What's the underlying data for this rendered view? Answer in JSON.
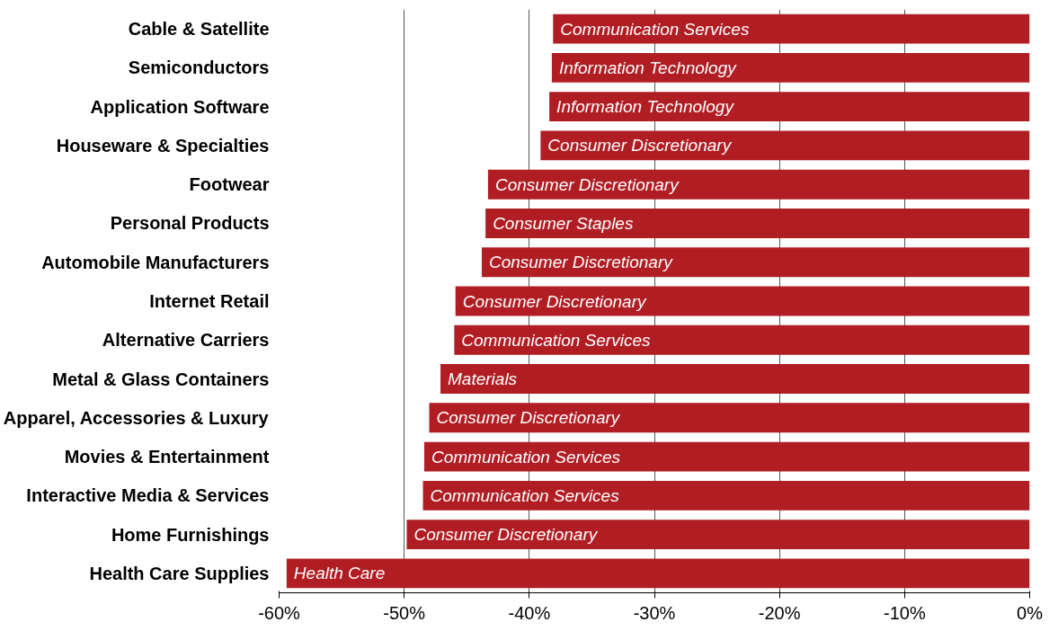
{
  "chart_data": {
    "type": "bar",
    "orientation": "horizontal",
    "categories": [
      "Cable & Satellite",
      "Semiconductors",
      "Application Software",
      "Houseware & Specialties",
      "Footwear",
      "Personal Products",
      "Automobile Manufacturers",
      "Internet Retail",
      "Alternative Carriers",
      "Metal & Glass Containers",
      "Apparel, Accessories & Luxury",
      "Movies & Entertainment",
      "Interactive Media & Services",
      "Home Furnishings",
      "Health Care Supplies"
    ],
    "values": [
      -38.1,
      -38.2,
      -38.4,
      -39.1,
      -43.3,
      -43.5,
      -43.8,
      -45.9,
      -46.0,
      -47.1,
      -48.0,
      -48.4,
      -48.5,
      -49.8,
      -59.4
    ],
    "color": "#b01e24",
    "xlim": [
      -60,
      0
    ],
    "xticks": [
      {
        "value": -60,
        "label": "-60%"
      },
      {
        "value": -50,
        "label": "-50%"
      },
      {
        "value": -40,
        "label": "-40%"
      },
      {
        "value": -30,
        "label": "-30%"
      },
      {
        "value": -20,
        "label": "-20%"
      },
      {
        "value": -10,
        "label": "-10%"
      },
      {
        "value": 0,
        "label": "0%"
      }
    ],
    "grid": "x",
    "annotations": [
      {
        "text": "Communication Services",
        "x": -38.1,
        "y": "Cable & Satellite"
      },
      {
        "text": "Information Technology",
        "x": -38.2,
        "y": "Semiconductors"
      },
      {
        "text": "Information Technology",
        "x": -38.4,
        "y": "Application Software"
      },
      {
        "text": "Consumer Discretionary",
        "x": -39.1,
        "y": "Houseware & Specialties"
      },
      {
        "text": "Consumer Discretionary",
        "x": -43.3,
        "y": "Footwear"
      },
      {
        "text": "Consumer Staples",
        "x": -43.5,
        "y": "Personal Products"
      },
      {
        "text": "Consumer Discretionary",
        "x": -43.8,
        "y": "Automobile Manufacturers"
      },
      {
        "text": "Consumer Discretionary",
        "x": -45.9,
        "y": "Internet Retail"
      },
      {
        "text": "Communication Services",
        "x": -46.0,
        "y": "Alternative Carriers"
      },
      {
        "text": "Materials",
        "x": -47.1,
        "y": "Metal & Glass Containers"
      },
      {
        "text": "Consumer Discretionary",
        "x": -48.0,
        "y": "Apparel, Accessories & Luxury"
      },
      {
        "text": "Communication Services",
        "x": -48.4,
        "y": "Movies & Entertainment"
      },
      {
        "text": "Communication Services",
        "x": -48.5,
        "y": "Interactive Media & Services"
      },
      {
        "text": "Consumer Discretionary",
        "x": -49.8,
        "y": "Home Furnishings"
      },
      {
        "text": "Health Care",
        "x": -59.4,
        "y": "Health Care Supplies"
      }
    ]
  }
}
